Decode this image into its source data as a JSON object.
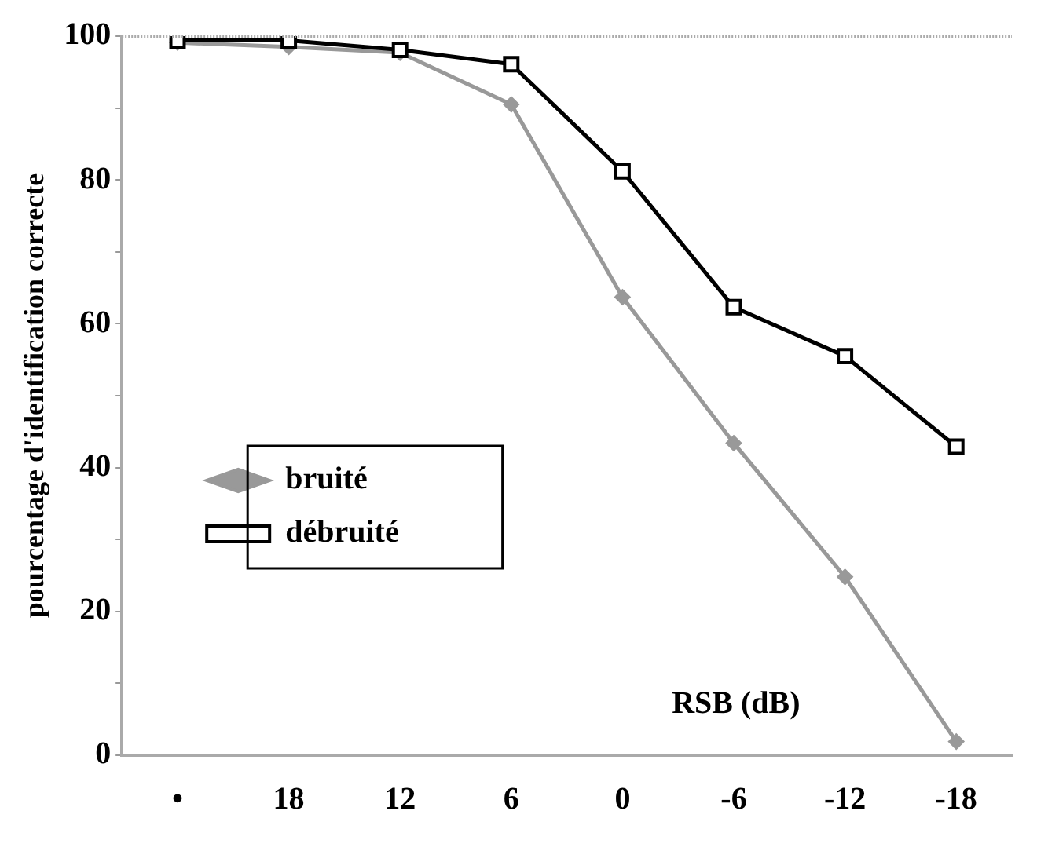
{
  "chart_data": {
    "type": "line",
    "xlabel": "RSB (dB)",
    "ylabel": "pourcentage d'identification correcte",
    "categories": [
      "•",
      "18",
      "12",
      "6",
      "0",
      "-6",
      "-12",
      "-18"
    ],
    "series": [
      {
        "name": "bruité",
        "color": "#999999",
        "marker": "diamond",
        "values": [
          99.1,
          98.5,
          97.7,
          90.5,
          63.7,
          43.4,
          24.8,
          1.9
        ]
      },
      {
        "name": "débruité",
        "color": "#000000",
        "marker": "square",
        "values": [
          99.4,
          99.4,
          98.1,
          96.1,
          81.2,
          62.3,
          55.5,
          42.9
        ]
      }
    ],
    "ylim": [
      0,
      100
    ],
    "yticks": [
      0,
      {
        "value": 10,
        "label": null
      },
      20,
      {
        "value": 30,
        "label": null
      },
      40,
      {
        "value": 50,
        "label": null
      },
      60,
      {
        "value": 70,
        "label": null
      },
      80,
      {
        "value": 90,
        "label": null
      },
      100
    ],
    "grid": false,
    "legend": "center left"
  }
}
